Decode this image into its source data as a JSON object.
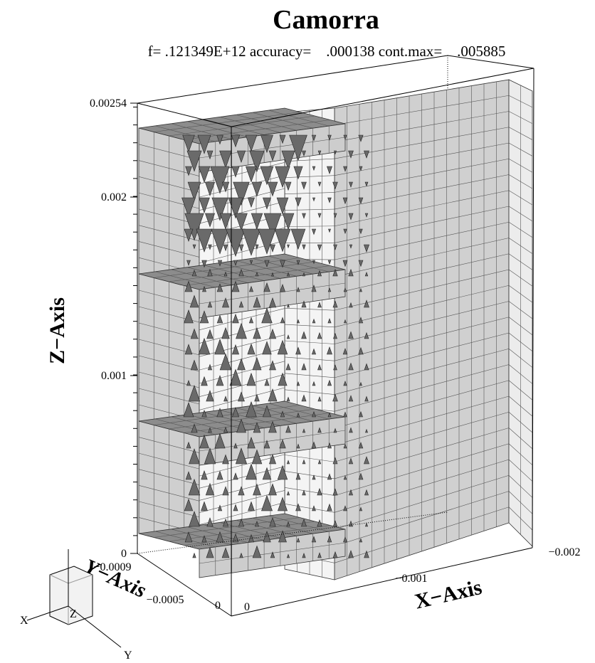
{
  "title": "Camorra",
  "subtitle": "f= .121349E+12 accuracy=    .000138 cont.max=    .005885",
  "axes": {
    "z": {
      "label": "Z−Axis",
      "ticks": [
        "0.00254",
        "0.002",
        "0.001",
        "0"
      ]
    },
    "y": {
      "label": "Y−Axis",
      "ticks": [
        "−0.0009",
        "−0.0005",
        "0"
      ]
    },
    "x": {
      "label": "X−Axis",
      "ticks": [
        "0",
        "−0.001",
        "−0.002"
      ]
    }
  },
  "triad": {
    "x": "X",
    "y": "Y",
    "z": "Z"
  }
}
